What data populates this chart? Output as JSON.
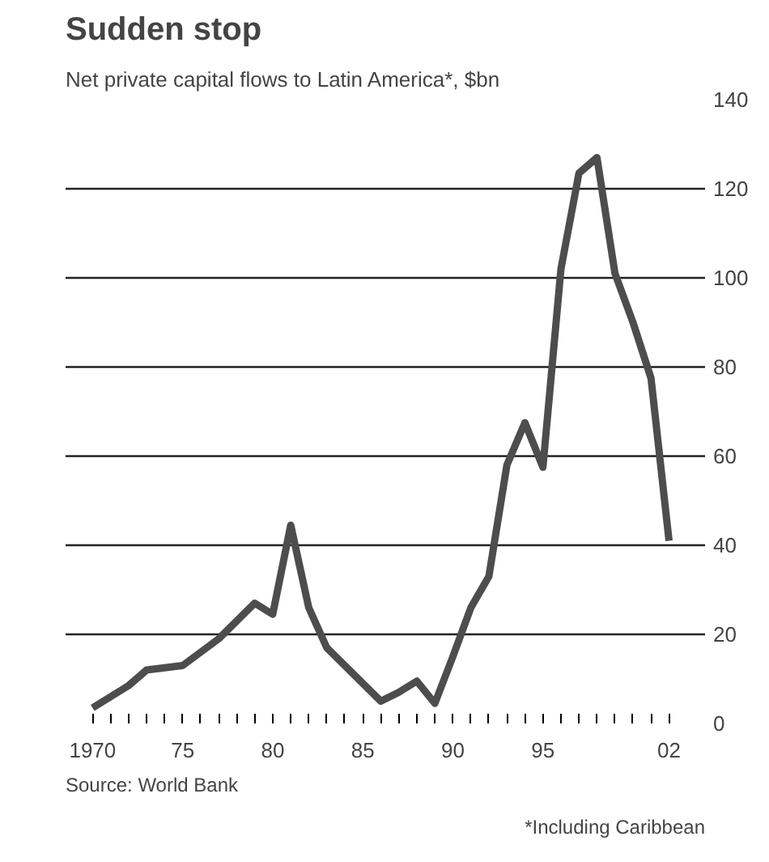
{
  "chart_data": {
    "type": "line",
    "title": "Sudden stop",
    "subtitle": "Net private capital flows to Latin America*, $bn",
    "annotations": [
      "Source: World Bank",
      "*Including Caribbean"
    ],
    "x": [
      1970,
      1971,
      1972,
      1973,
      1974,
      1975,
      1976,
      1977,
      1978,
      1979,
      1980,
      1981,
      1982,
      1983,
      1984,
      1985,
      1986,
      1987,
      1988,
      1989,
      1990,
      1991,
      1992,
      1993,
      1994,
      1995,
      1996,
      1997,
      1998,
      1999,
      2000,
      2001,
      2002
    ],
    "series": [
      {
        "color": "#4d4d4d",
        "values": [
          3.5,
          6,
          8.5,
          12,
          12.5,
          13,
          16,
          19,
          23,
          27,
          24.5,
          44.5,
          26,
          17,
          13,
          9,
          5,
          7,
          9.5,
          4.5,
          15,
          26,
          33,
          58,
          67.5,
          57.5,
          102,
          123.5,
          127,
          101,
          90,
          77.5,
          41
        ]
      }
    ],
    "xlim": [
      1968.5,
      2004
    ],
    "xticks": [
      {
        "value": 1970,
        "label": "1970"
      },
      {
        "value": 1971,
        "label": null
      },
      {
        "value": 1972,
        "label": null
      },
      {
        "value": 1973,
        "label": null
      },
      {
        "value": 1974,
        "label": null
      },
      {
        "value": 1975,
        "label": "75"
      },
      {
        "value": 1976,
        "label": null
      },
      {
        "value": 1977,
        "label": null
      },
      {
        "value": 1978,
        "label": null
      },
      {
        "value": 1979,
        "label": null
      },
      {
        "value": 1980,
        "label": "80"
      },
      {
        "value": 1981,
        "label": null
      },
      {
        "value": 1982,
        "label": null
      },
      {
        "value": 1983,
        "label": null
      },
      {
        "value": 1984,
        "label": null
      },
      {
        "value": 1985,
        "label": "85"
      },
      {
        "value": 1986,
        "label": null
      },
      {
        "value": 1987,
        "label": null
      },
      {
        "value": 1988,
        "label": null
      },
      {
        "value": 1989,
        "label": null
      },
      {
        "value": 1990,
        "label": "90"
      },
      {
        "value": 1991,
        "label": null
      },
      {
        "value": 1992,
        "label": null
      },
      {
        "value": 1993,
        "label": null
      },
      {
        "value": 1994,
        "label": null
      },
      {
        "value": 1995,
        "label": "95"
      },
      {
        "value": 1996,
        "label": null
      },
      {
        "value": 1997,
        "label": null
      },
      {
        "value": 1998,
        "label": null
      },
      {
        "value": 1999,
        "label": null
      },
      {
        "value": 2000,
        "label": null
      },
      {
        "value": 2001,
        "label": null
      },
      {
        "value": 2002,
        "label": "02"
      }
    ],
    "ylim": [
      0,
      140
    ],
    "yticks": [
      0,
      20,
      40,
      60,
      80,
      100,
      120,
      140
    ],
    "grid": "y",
    "marker": "none",
    "line_style": "solid"
  }
}
